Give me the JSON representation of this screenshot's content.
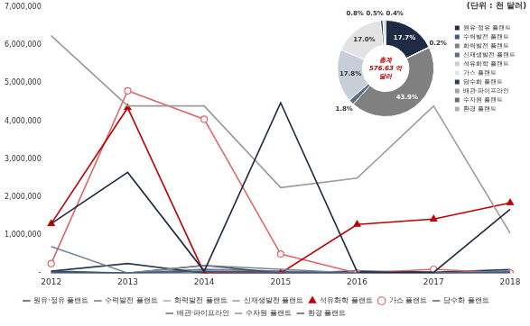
{
  "chart_data": [
    {
      "type": "line",
      "annotations": [
        "(단위 : 천 달러)"
      ],
      "categories": [
        "2012",
        "2013",
        "2014",
        "2015",
        "2016",
        "2017",
        "2018"
      ],
      "series": [
        {
          "name": "원유·정유 플랜트",
          "color": "#1f2a44",
          "marker": "none",
          "values": [
            1300000,
            2650000,
            50000,
            4480000,
            30000,
            20000,
            1680000
          ]
        },
        {
          "name": "수력발전 플랜트",
          "color": "#3b5a87",
          "marker": "none",
          "values": [
            20000,
            0,
            50000,
            20000,
            0,
            0,
            20000
          ]
        },
        {
          "name": "화력발전 플랜트",
          "color": "#9a9a9a",
          "marker": "none",
          "values": [
            6250000,
            4400000,
            4400000,
            2250000,
            2500000,
            4400000,
            1050000
          ]
        },
        {
          "name": "신재생발전 플랜트",
          "color": "#7a8594",
          "marker": "none",
          "values": [
            700000,
            0,
            200000,
            100000,
            0,
            0,
            50000
          ]
        },
        {
          "name": "석유화학 플랜트",
          "color": "#c00000",
          "marker": "triangle",
          "values": [
            1300000,
            4350000,
            0,
            0,
            1280000,
            1420000,
            1850000
          ]
        },
        {
          "name": "가스 플랜트",
          "color": "#e06666",
          "marker": "hollow_circle",
          "values": [
            250000,
            4800000,
            4050000,
            500000,
            0,
            100000,
            0
          ]
        },
        {
          "name": "담수화 플랜트",
          "color": "#2b3a55",
          "marker": "none",
          "values": [
            50000,
            250000,
            0,
            0,
            50000,
            20000,
            90000
          ]
        },
        {
          "name": "배관·파이프라인",
          "color": "#444444",
          "marker": "none",
          "values": [
            50000,
            0,
            200000,
            0,
            0,
            0,
            40000
          ]
        },
        {
          "name": "수자원 플랜트",
          "color": "#6b7b8d",
          "marker": "none",
          "values": [
            30000,
            0,
            100000,
            50000,
            0,
            0,
            50000
          ]
        },
        {
          "name": "환경 플랜트",
          "color": "#333333",
          "marker": "none",
          "values": [
            0,
            0,
            0,
            0,
            0,
            0,
            0
          ]
        }
      ],
      "ylim": [
        0,
        7000000
      ],
      "yticks": [
        {
          "value": 0,
          "label": "-"
        },
        {
          "value": 1000000,
          "label": "1,000,000"
        },
        {
          "value": 2000000,
          "label": "2,000,000"
        },
        {
          "value": 3000000,
          "label": "3,000,000"
        },
        {
          "value": 4000000,
          "label": "4,000,000"
        },
        {
          "value": 5000000,
          "label": "5,000,000"
        },
        {
          "value": 6000000,
          "label": "6,000,000"
        },
        {
          "value": 7000000,
          "label": "7,000,000"
        }
      ],
      "grid": false,
      "legend": "bottom"
    },
    {
      "type": "doughnut",
      "annotations": [
        "총계",
        "576.63 억",
        "달러"
      ],
      "categories": [
        "원유·정유 플랜트",
        "수력발전 플랜트",
        "화력발전 플랜트",
        "신재생발전 플랜트",
        "석유화학 플랜트",
        "가스 플랜트",
        "담수화 플랜트",
        "배관·파이프라인",
        "수자원 플랜트",
        "환경 플랜트"
      ],
      "values": [
        17.7,
        0.2,
        43.9,
        1.8,
        17.8,
        17.0,
        0.8,
        0.5,
        0.4,
        0
      ],
      "value_labels": [
        "17.7%",
        "0.2%",
        "43.9%",
        "1.8%",
        "17.8%",
        "17.0%",
        "0.8%",
        "0.5%",
        "0.4%",
        null
      ],
      "colors": [
        "#1f2a44",
        "#3b5a87",
        "#808080",
        "#5d6d82",
        "#c8ced8",
        "#e3e3e3",
        "#2b3a55",
        "#9aa4b2",
        "#6b6b6b",
        "#b0b0b0"
      ],
      "data_labels": true,
      "legend": "right"
    }
  ]
}
